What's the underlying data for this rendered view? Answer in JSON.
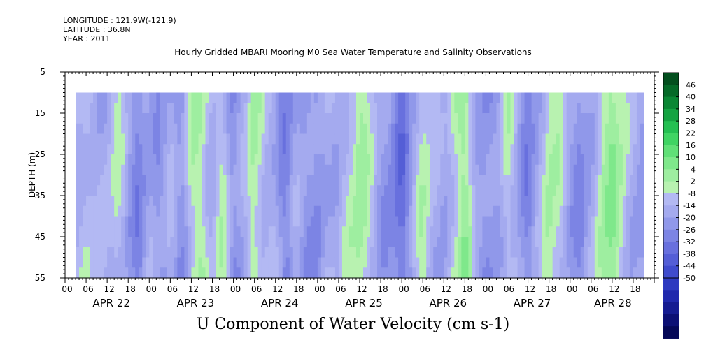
{
  "header": {
    "longitude": "LONGITUDE : 121.9W(-121.9)",
    "latitude": "LATITUDE : 36.8N",
    "year": "YEAR : 2011"
  },
  "title": "Hourly Gridded MBARI Mooring M0 Sea Water Temperature and Salinity Observations",
  "footer": "U Component of Water Velocity (cm s-1)",
  "chart_data": {
    "type": "heatmap",
    "variable": "U Component of Water Velocity (cm s-1)",
    "ylabel": "DEPTH (m)",
    "y_axis_inverted": true,
    "ylim": [
      5,
      55
    ],
    "yticks": [
      5,
      15,
      25,
      35,
      45,
      55
    ],
    "x_hour_ticks": [
      "00",
      "06",
      "12",
      "18",
      "00",
      "06",
      "12",
      "18",
      "00",
      "06",
      "12",
      "18",
      "00",
      "06",
      "12",
      "18",
      "00",
      "06",
      "12",
      "18",
      "00",
      "06",
      "12",
      "18",
      "00",
      "06",
      "12",
      "18"
    ],
    "x_day_labels": [
      "APR 22",
      "APR 23",
      "APR 24",
      "APR 25",
      "APR 26",
      "APR 27",
      "APR 28"
    ],
    "data_start_hour": 3,
    "data_end_hour": 165,
    "data_depth_range": [
      10,
      55
    ],
    "colorbar": {
      "levels": [
        -50,
        -44,
        -38,
        -32,
        -26,
        -20,
        -14,
        -8,
        -2,
        4,
        10,
        16,
        22,
        28,
        34,
        40,
        46
      ],
      "tick_labels": [
        "46",
        "40",
        "34",
        "28",
        "22",
        "16",
        "10",
        "4",
        "-2",
        "-8",
        "-14",
        "-20",
        "-26",
        "-32",
        "-38",
        "-44",
        "-50"
      ],
      "negative_palette": [
        "#b3b9f3",
        "#a4aaef",
        "#9098ea",
        "#7c84e4",
        "#6870de",
        "#545ed6",
        "#3f4bcd",
        "#2e3ac0",
        "#2029ad",
        "#151c92",
        "#0c1075",
        "#050857"
      ],
      "positive_palette": [
        "#b8f2b0",
        "#9eeea0",
        "#7fe88b",
        "#60e077",
        "#3fd463",
        "#24c052",
        "#14a442",
        "#0a8734",
        "#056a28",
        "#034f1e"
      ]
    },
    "approx_hourly_u_values": [
      [
        3,
        -4
      ],
      [
        6,
        4
      ],
      [
        9,
        -6
      ],
      [
        12,
        -2
      ],
      [
        15,
        4
      ],
      [
        18,
        -8
      ],
      [
        21,
        -16
      ],
      [
        24,
        -6
      ],
      [
        27,
        -10
      ],
      [
        30,
        -4
      ],
      [
        33,
        -12
      ],
      [
        36,
        6
      ],
      [
        39,
        10
      ],
      [
        42,
        -4
      ],
      [
        45,
        6
      ],
      [
        48,
        -12
      ],
      [
        51,
        -6
      ],
      [
        54,
        12
      ],
      [
        57,
        -2
      ],
      [
        60,
        -4
      ],
      [
        63,
        -18
      ],
      [
        66,
        -6
      ],
      [
        69,
        -10
      ],
      [
        72,
        -14
      ],
      [
        75,
        -2
      ],
      [
        78,
        -6
      ],
      [
        81,
        4
      ],
      [
        84,
        12
      ],
      [
        87,
        2
      ],
      [
        90,
        -8
      ],
      [
        93,
        -14
      ],
      [
        96,
        -22
      ],
      [
        99,
        -8
      ],
      [
        102,
        8
      ],
      [
        105,
        -2
      ],
      [
        108,
        -8
      ],
      [
        111,
        6
      ],
      [
        114,
        14
      ],
      [
        117,
        -4
      ],
      [
        120,
        -14
      ],
      [
        123,
        -10
      ],
      [
        126,
        6
      ],
      [
        129,
        -6
      ],
      [
        132,
        -16
      ],
      [
        135,
        -6
      ],
      [
        138,
        10
      ],
      [
        141,
        4
      ],
      [
        144,
        -8
      ],
      [
        147,
        -14
      ],
      [
        150,
        -6
      ],
      [
        153,
        10
      ],
      [
        156,
        14
      ],
      [
        159,
        6
      ],
      [
        162,
        -6
      ],
      [
        165,
        -10
      ]
    ]
  }
}
